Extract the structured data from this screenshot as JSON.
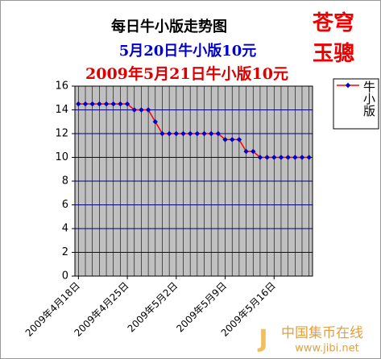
{
  "chart_data": {
    "type": "line",
    "title": "每日牛小版走势图",
    "subtitle": "5月20日牛小版10元",
    "annotation": "2009年5月21日牛小版10元",
    "stamp": [
      "苍穹",
      "玉骢"
    ],
    "watermark": [
      "中国集币在线",
      "www.jibi.net"
    ],
    "categories": [
      "2009年4月18日",
      null,
      null,
      null,
      null,
      null,
      null,
      "2009年4月25日",
      null,
      null,
      null,
      null,
      null,
      null,
      "2009年5月2日",
      null,
      null,
      null,
      null,
      null,
      null,
      "2009年5月9日",
      null,
      null,
      null,
      null,
      null,
      null,
      "2009年5月16日",
      null,
      null,
      null,
      null,
      null
    ],
    "series": [
      {
        "name": "牛小版",
        "color": "#ff0000",
        "marker_color": "#0000cc",
        "values": [
          14.5,
          14.5,
          14.5,
          14.5,
          14.5,
          14.5,
          14.5,
          14.5,
          14,
          14,
          14,
          13,
          12,
          12,
          12,
          12,
          12,
          12,
          12,
          12,
          12,
          11.5,
          11.5,
          11.5,
          10.5,
          10.5,
          10,
          10,
          10,
          10,
          10,
          10,
          10,
          10
        ]
      }
    ],
    "ylim": [
      0,
      16
    ],
    "yticks": [
      0,
      2,
      4,
      6,
      8,
      10,
      12,
      14,
      16
    ],
    "grid": true,
    "plot_background": "#c0c0c0",
    "grid_color": "#000080"
  }
}
